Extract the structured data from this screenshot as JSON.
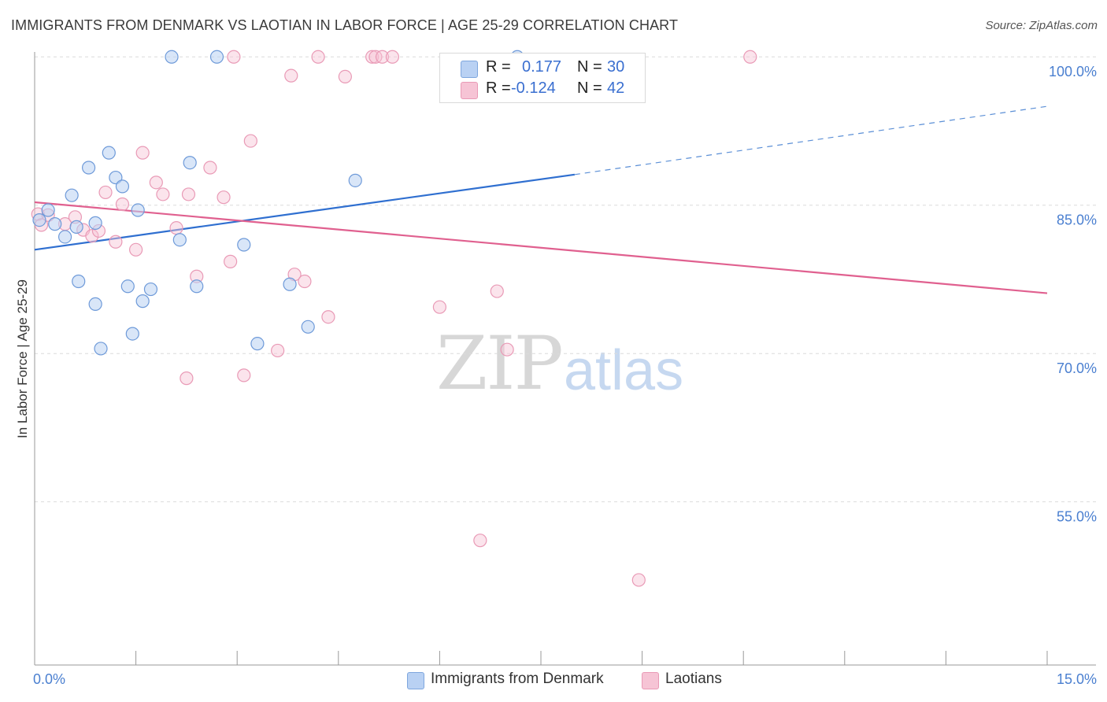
{
  "title": "IMMIGRANTS FROM DENMARK VS LAOTIAN IN LABOR FORCE | AGE 25-29 CORRELATION CHART",
  "source": "Source: ZipAtlas.com",
  "watermark": {
    "zip": "ZIP",
    "atlas": "atlas"
  },
  "colors": {
    "blue": "#5b8fd6",
    "blue_fill": "#b9d1f3",
    "pink": "#e8709a",
    "pink_fill": "#f6c4d5",
    "tick": "#4a7fd0"
  },
  "stats": [
    {
      "r_label": "R =",
      "r_value": "0.177",
      "n_label": "N =",
      "n_value": "30"
    },
    {
      "r_label": "R =",
      "r_value": "-0.124",
      "n_label": "N =",
      "n_value": "42"
    }
  ],
  "legend": {
    "blue": "Immigrants from Denmark",
    "pink": "Laotians"
  },
  "chart_data": {
    "type": "scatter",
    "title": "IMMIGRANTS FROM DENMARK VS LAOTIAN IN LABOR FORCE | AGE 25-29 CORRELATION CHART",
    "xlabel": "",
    "ylabel": "In Labor Force | Age 25-29",
    "xlim": [
      0,
      15
    ],
    "ylim": [
      40,
      102
    ],
    "x_tick_labels": [
      {
        "value": 0,
        "label": "0.0%"
      },
      {
        "value": 15,
        "label": "15.0%"
      }
    ],
    "y_tick_labels": [
      {
        "value": 100,
        "label": "100.0%"
      },
      {
        "value": 85,
        "label": "85.0%"
      },
      {
        "value": 70,
        "label": "70.0%"
      },
      {
        "value": 55,
        "label": "55.0%"
      }
    ],
    "y_gridlines": [
      101.5,
      86.5,
      71.5,
      56.5
    ],
    "x_minor_ticks": [
      1.5,
      3.0,
      4.5,
      6.0,
      7.5,
      9.0,
      10.5,
      12.0,
      13.5,
      15.0
    ],
    "series": [
      {
        "name": "Immigrants from Denmark",
        "color": "#5b8fd6",
        "points": [
          [
            0.07,
            85.0
          ],
          [
            0.2,
            86.0
          ],
          [
            0.3,
            84.6
          ],
          [
            0.45,
            83.3
          ],
          [
            0.55,
            87.5
          ],
          [
            0.62,
            84.3
          ],
          [
            0.8,
            90.3
          ],
          [
            0.65,
            78.8
          ],
          [
            0.9,
            76.5
          ],
          [
            0.98,
            72.0
          ],
          [
            1.1,
            91.8
          ],
          [
            1.2,
            89.3
          ],
          [
            1.3,
            88.4
          ],
          [
            1.38,
            78.3
          ],
          [
            1.45,
            73.5
          ],
          [
            1.53,
            86.0
          ],
          [
            1.6,
            76.8
          ],
          [
            1.72,
            78.0
          ],
          [
            2.03,
            101.5
          ],
          [
            2.15,
            83.0
          ],
          [
            2.3,
            90.8
          ],
          [
            2.4,
            78.3
          ],
          [
            2.7,
            101.5
          ],
          [
            3.1,
            82.5
          ],
          [
            3.3,
            72.5
          ],
          [
            3.78,
            78.5
          ],
          [
            4.05,
            74.2
          ],
          [
            4.75,
            89.0
          ],
          [
            7.15,
            101.5
          ],
          [
            0.9,
            84.7
          ]
        ],
        "trend": {
          "x0": 0,
          "y0": 82.0,
          "x1": 8.0,
          "y1": 89.6,
          "x_ext": 15.0,
          "y_ext": 96.5
        }
      },
      {
        "name": "Laotians",
        "color": "#e8709a",
        "points": [
          [
            0.05,
            85.6
          ],
          [
            0.2,
            85.5
          ],
          [
            0.45,
            84.6
          ],
          [
            0.6,
            85.3
          ],
          [
            0.72,
            84.0
          ],
          [
            0.85,
            83.4
          ],
          [
            0.95,
            83.9
          ],
          [
            1.05,
            87.8
          ],
          [
            1.2,
            82.8
          ],
          [
            1.3,
            86.6
          ],
          [
            1.5,
            82.0
          ],
          [
            1.6,
            91.8
          ],
          [
            1.8,
            88.8
          ],
          [
            1.9,
            87.6
          ],
          [
            2.1,
            84.2
          ],
          [
            2.25,
            69.0
          ],
          [
            2.28,
            87.6
          ],
          [
            2.4,
            79.3
          ],
          [
            2.6,
            90.3
          ],
          [
            2.8,
            87.3
          ],
          [
            2.9,
            80.8
          ],
          [
            2.95,
            101.5
          ],
          [
            3.1,
            69.3
          ],
          [
            3.2,
            93.0
          ],
          [
            3.6,
            71.8
          ],
          [
            3.8,
            99.6
          ],
          [
            3.85,
            79.5
          ],
          [
            4.0,
            78.8
          ],
          [
            4.2,
            101.5
          ],
          [
            4.35,
            75.2
          ],
          [
            4.6,
            99.5
          ],
          [
            5.0,
            101.5
          ],
          [
            5.05,
            101.5
          ],
          [
            5.15,
            101.5
          ],
          [
            5.3,
            101.5
          ],
          [
            6.0,
            76.2
          ],
          [
            6.6,
            52.6
          ],
          [
            6.85,
            77.8
          ],
          [
            7.0,
            71.9
          ],
          [
            8.95,
            48.6
          ],
          [
            10.6,
            101.5
          ],
          [
            0.1,
            84.5
          ]
        ],
        "trend": {
          "x0": 0,
          "y0": 86.8,
          "x1": 15.0,
          "y1": 77.6
        }
      }
    ]
  }
}
